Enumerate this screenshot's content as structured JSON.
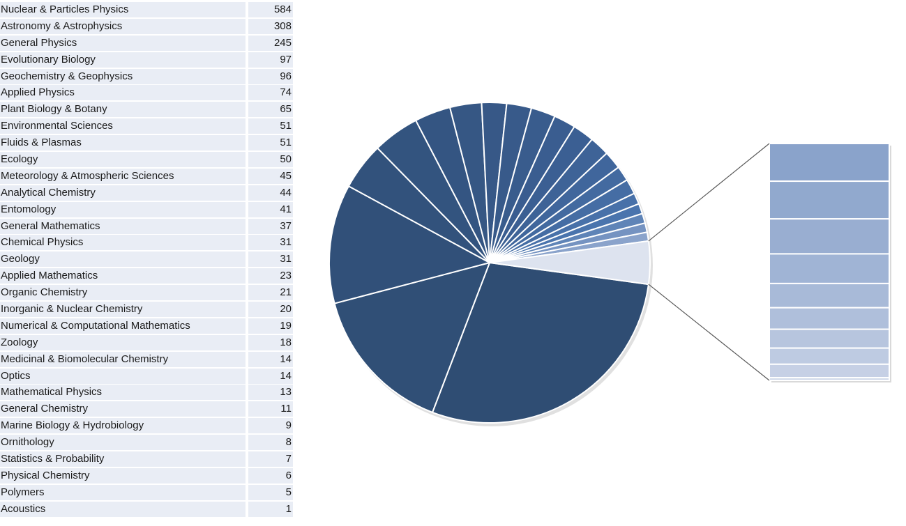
{
  "chart_data": {
    "type": "pie",
    "subtype": "bar-of-pie",
    "categories": [
      "Nuclear & Particles Physics",
      "Astronomy & Astrophysics",
      "General Physics",
      "Evolutionary Biology",
      "Geochemistry & Geophysics",
      "Applied Physics",
      "Plant Biology & Botany",
      "Environmental Sciences",
      "Fluids & Plasmas",
      "Ecology",
      "Meteorology & Atmospheric Sciences",
      "Analytical Chemistry",
      "Entomology",
      "General Mathematics",
      "Chemical Physics",
      "Geology",
      "Applied Mathematics",
      "Organic Chemistry",
      "Inorganic & Nuclear Chemistry",
      "Numerical & Computational Mathematics",
      "Zoology",
      "Medicinal & Biomolecular Chemistry",
      "Optics",
      "Mathematical Physics",
      "General Chemistry",
      "Marine Biology & Hydrobiology",
      "Ornithology",
      "Statistics & Probability",
      "Physical Chemistry",
      "Polymers",
      "Acoustics"
    ],
    "values": [
      584,
      308,
      245,
      97,
      96,
      74,
      65,
      51,
      51,
      50,
      45,
      44,
      41,
      37,
      31,
      31,
      23,
      21,
      20,
      19,
      18,
      14,
      14,
      13,
      11,
      9,
      8,
      7,
      6,
      5,
      1
    ],
    "secondary_count": 10,
    "colors": {
      "dark": "#2f4d73",
      "mid": "#4a74ad",
      "light": "#8aa3cb",
      "other_slice": "#dde3ef",
      "bar_light": "#cdd6e8",
      "connector": "#595959"
    }
  }
}
